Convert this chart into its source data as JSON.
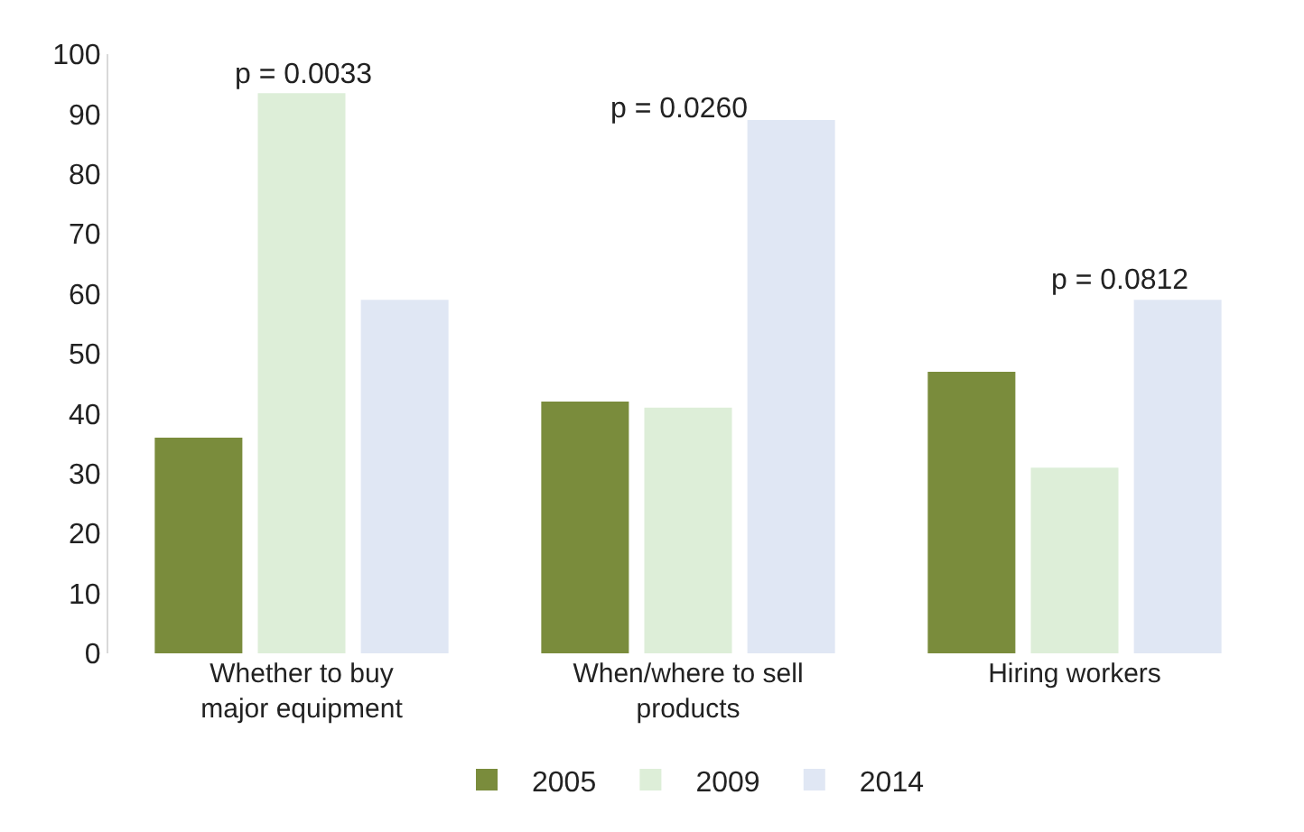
{
  "chart_data": {
    "type": "bar",
    "categories": [
      "Whether to buy\nmajor equipment",
      "When/where to sell\nproducts",
      "Hiring workers"
    ],
    "series": [
      {
        "name": "2005",
        "color": "#7a8c3c",
        "values": [
          36,
          42,
          47
        ]
      },
      {
        "name": "2009",
        "color": "#ddeed8",
        "values": [
          93.5,
          41,
          31
        ]
      },
      {
        "name": "2014",
        "color": "#e0e7f4",
        "values": [
          59,
          89,
          59
        ]
      }
    ],
    "ylim": [
      0,
      100
    ],
    "yticks": [
      0,
      10,
      20,
      30,
      40,
      50,
      60,
      70,
      80,
      90,
      100
    ],
    "legend": "bottom",
    "annotations": [
      "p = 0.0033",
      "p = 0.0260",
      "p = 0.0812"
    ]
  }
}
